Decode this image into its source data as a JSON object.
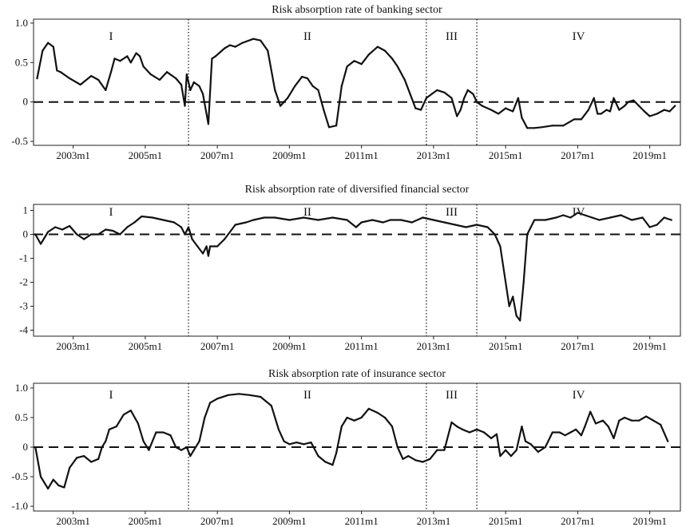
{
  "chart_data": [
    {
      "type": "line",
      "title": "Risk absorption rate of banking sector",
      "ylim": [
        -0.55,
        1.05
      ],
      "yticks": [
        1.0,
        0.5,
        0,
        -0.5
      ],
      "ytick_labels": [
        "1.0",
        "0.5",
        "0",
        "-0.5"
      ],
      "xlim": [
        2001.9,
        2019.85
      ],
      "xticks": [
        2003,
        2005,
        2007,
        2009,
        2011,
        2013,
        2015,
        2017,
        2019
      ],
      "xtick_labels": [
        "2003m1",
        "2005m1",
        "2007m1",
        "2009m1",
        "2011m1",
        "2013m1",
        "2015m1",
        "2017m1",
        "2019m1"
      ],
      "zero_line": 0,
      "period_boundaries": [
        2006.2,
        2012.8,
        2014.2
      ],
      "periods": [
        "I",
        "II",
        "III",
        "IV"
      ],
      "series": [
        {
          "x": [
            2002.0,
            2002.15,
            2002.3,
            2002.45,
            2002.55,
            2002.65,
            2002.9,
            2003.2,
            2003.5,
            2003.7,
            2003.9,
            2004.05,
            2004.15,
            2004.3,
            2004.5,
            2004.6,
            2004.75,
            2004.85,
            2004.95,
            2005.15,
            2005.4,
            2005.6,
            2005.85,
            2006.0,
            2006.1,
            2006.15,
            2006.25,
            2006.35,
            2006.5,
            2006.6,
            2006.75,
            2006.85,
            2006.95,
            2007.05,
            2007.2,
            2007.35,
            2007.5,
            2007.7,
            2008.0,
            2008.2,
            2008.4,
            2008.6,
            2008.75,
            2008.85,
            2008.95,
            2009.15,
            2009.35,
            2009.5,
            2009.65,
            2009.8,
            2009.95,
            2010.1,
            2010.3,
            2010.45,
            2010.6,
            2010.8,
            2011.0,
            2011.2,
            2011.45,
            2011.65,
            2011.85,
            2012.0,
            2012.2,
            2012.35,
            2012.5,
            2012.65,
            2012.8,
            2012.95,
            2013.1,
            2013.3,
            2013.5,
            2013.65,
            2013.75,
            2013.85,
            2013.95,
            2014.1,
            2014.2,
            2014.35,
            2014.6,
            2014.8,
            2015.0,
            2015.2,
            2015.35,
            2015.45,
            2015.6,
            2015.8,
            2016.0,
            2016.3,
            2016.6,
            2016.9,
            2017.1,
            2017.3,
            2017.45,
            2017.55,
            2017.65,
            2017.8,
            2017.9,
            2018.0,
            2018.15,
            2018.3,
            2018.4,
            2018.55,
            2018.7,
            2018.85,
            2019.0,
            2019.2,
            2019.4,
            2019.55,
            2019.7
          ],
          "y": [
            0.3,
            0.65,
            0.75,
            0.7,
            0.4,
            0.38,
            0.3,
            0.22,
            0.33,
            0.28,
            0.15,
            0.38,
            0.55,
            0.52,
            0.58,
            0.5,
            0.62,
            0.58,
            0.45,
            0.35,
            0.28,
            0.38,
            0.3,
            0.22,
            -0.05,
            0.35,
            0.15,
            0.25,
            0.2,
            0.1,
            -0.28,
            0.55,
            0.58,
            0.62,
            0.68,
            0.72,
            0.7,
            0.75,
            0.8,
            0.78,
            0.65,
            0.15,
            -0.05,
            0.0,
            0.05,
            0.2,
            0.32,
            0.3,
            0.2,
            0.15,
            -0.1,
            -0.32,
            -0.3,
            0.2,
            0.45,
            0.52,
            0.48,
            0.6,
            0.7,
            0.65,
            0.55,
            0.45,
            0.28,
            0.1,
            -0.08,
            -0.1,
            0.05,
            0.1,
            0.15,
            0.12,
            0.05,
            -0.18,
            -0.1,
            0.05,
            0.15,
            0.1,
            0.0,
            -0.05,
            -0.1,
            -0.15,
            -0.08,
            -0.12,
            0.05,
            -0.2,
            -0.33,
            -0.33,
            -0.32,
            -0.3,
            -0.3,
            -0.22,
            -0.22,
            -0.1,
            0.05,
            -0.15,
            -0.15,
            -0.1,
            -0.12,
            0.05,
            -0.1,
            -0.05,
            0.0,
            0.02,
            -0.05,
            -0.12,
            -0.18,
            -0.15,
            -0.1,
            -0.12,
            -0.05
          ]
        }
      ]
    },
    {
      "type": "line",
      "title": "Risk absorption rate of diversified financial sector",
      "ylim": [
        -4.25,
        1.25
      ],
      "yticks": [
        1,
        0,
        -1,
        -2,
        -3,
        -4
      ],
      "ytick_labels": [
        "1",
        "0",
        "-1",
        "-2",
        "-3",
        "-4"
      ],
      "xlim": [
        2001.9,
        2019.85
      ],
      "xticks": [
        2003,
        2005,
        2007,
        2009,
        2011,
        2013,
        2015,
        2017,
        2019
      ],
      "xtick_labels": [
        "2003m1",
        "2005m1",
        "2007m1",
        "2009m1",
        "2011m1",
        "2013m1",
        "2015m1",
        "2017m1",
        "2019m1"
      ],
      "zero_line": 0,
      "period_boundaries": [
        2006.2,
        2012.8,
        2014.2
      ],
      "periods": [
        "I",
        "II",
        "III",
        "IV"
      ],
      "series": [
        {
          "x": [
            2001.95,
            2002.1,
            2002.3,
            2002.5,
            2002.7,
            2002.9,
            2003.1,
            2003.3,
            2003.5,
            2003.7,
            2003.9,
            2004.1,
            2004.3,
            2004.5,
            2004.7,
            2004.9,
            2005.2,
            2005.5,
            2005.8,
            2006.0,
            2006.1,
            2006.2,
            2006.3,
            2006.45,
            2006.6,
            2006.7,
            2006.75,
            2006.8,
            2007.0,
            2007.2,
            2007.5,
            2007.8,
            2008.0,
            2008.3,
            2008.6,
            2009.0,
            2009.4,
            2009.8,
            2010.2,
            2010.6,
            2010.85,
            2011.0,
            2011.3,
            2011.6,
            2011.8,
            2012.1,
            2012.4,
            2012.7,
            2013.0,
            2013.3,
            2013.6,
            2013.9,
            2014.2,
            2014.5,
            2014.7,
            2014.85,
            2014.95,
            2015.1,
            2015.2,
            2015.3,
            2015.4,
            2015.5,
            2015.6,
            2015.8,
            2016.1,
            2016.4,
            2016.6,
            2016.8,
            2017.0,
            2017.2,
            2017.4,
            2017.6,
            2017.9,
            2018.2,
            2018.5,
            2018.8,
            2019.0,
            2019.2,
            2019.4,
            2019.6
          ],
          "y": [
            0.0,
            -0.4,
            0.1,
            0.3,
            0.2,
            0.35,
            0.0,
            -0.2,
            0.0,
            0.0,
            0.2,
            0.15,
            0.0,
            0.3,
            0.5,
            0.75,
            0.7,
            0.6,
            0.5,
            0.3,
            0.0,
            0.3,
            -0.2,
            -0.5,
            -0.8,
            -0.5,
            -0.9,
            -0.5,
            -0.5,
            -0.2,
            0.4,
            0.5,
            0.6,
            0.7,
            0.7,
            0.6,
            0.7,
            0.6,
            0.7,
            0.6,
            0.3,
            0.5,
            0.6,
            0.5,
            0.6,
            0.6,
            0.5,
            0.7,
            0.6,
            0.5,
            0.4,
            0.3,
            0.4,
            0.3,
            0.0,
            -0.5,
            -1.5,
            -3.0,
            -2.6,
            -3.4,
            -3.6,
            -2.0,
            0.0,
            0.6,
            0.6,
            0.7,
            0.8,
            0.7,
            0.9,
            0.8,
            0.7,
            0.6,
            0.7,
            0.8,
            0.6,
            0.7,
            0.3,
            0.4,
            0.7,
            0.6
          ]
        }
      ]
    },
    {
      "type": "line",
      "title": "Risk absorption rate of insurance sector",
      "ylim": [
        -1.08,
        1.08
      ],
      "yticks": [
        1.0,
        0.5,
        0,
        -0.5,
        -1.0
      ],
      "ytick_labels": [
        "1.0",
        "0.5",
        "0",
        "-0.5",
        "-1.0"
      ],
      "xlim": [
        2001.9,
        2019.85
      ],
      "xticks": [
        2003,
        2005,
        2007,
        2009,
        2011,
        2013,
        2015,
        2017,
        2019
      ],
      "xtick_labels": [
        "2003m1",
        "2005m1",
        "2007m1",
        "2009m1",
        "2011m1",
        "2013m1",
        "2015m1",
        "2017m1",
        "2019m1"
      ],
      "zero_line": 0,
      "period_boundaries": [
        2006.2,
        2012.8,
        2014.2
      ],
      "periods": [
        "I",
        "II",
        "III",
        "IV"
      ],
      "series": [
        {
          "x": [
            2001.95,
            2002.1,
            2002.3,
            2002.45,
            2002.6,
            2002.75,
            2002.9,
            2003.1,
            2003.3,
            2003.5,
            2003.7,
            2003.8,
            2003.9,
            2004.0,
            2004.2,
            2004.4,
            2004.6,
            2004.8,
            2004.95,
            2005.1,
            2005.3,
            2005.5,
            2005.7,
            2005.85,
            2006.0,
            2006.15,
            2006.25,
            2006.35,
            2006.5,
            2006.65,
            2006.8,
            2007.0,
            2007.3,
            2007.6,
            2007.9,
            2008.2,
            2008.5,
            2008.7,
            2008.85,
            2009.0,
            2009.2,
            2009.4,
            2009.6,
            2009.8,
            2010.0,
            2010.2,
            2010.3,
            2010.45,
            2010.6,
            2010.8,
            2011.0,
            2011.2,
            2011.45,
            2011.65,
            2011.85,
            2012.0,
            2012.15,
            2012.3,
            2012.5,
            2012.7,
            2012.9,
            2013.1,
            2013.3,
            2013.5,
            2013.65,
            2013.8,
            2014.0,
            2014.2,
            2014.4,
            2014.6,
            2014.75,
            2014.85,
            2015.0,
            2015.15,
            2015.3,
            2015.45,
            2015.55,
            2015.7,
            2015.9,
            2016.1,
            2016.3,
            2016.5,
            2016.65,
            2016.8,
            2016.95,
            2017.1,
            2017.2,
            2017.35,
            2017.5,
            2017.7,
            2017.85,
            2018.0,
            2018.15,
            2018.3,
            2018.5,
            2018.7,
            2018.9,
            2019.1,
            2019.3,
            2019.5
          ],
          "y": [
            0.0,
            -0.5,
            -0.7,
            -0.55,
            -0.65,
            -0.68,
            -0.35,
            -0.18,
            -0.15,
            -0.25,
            -0.2,
            0.0,
            0.1,
            0.3,
            0.35,
            0.55,
            0.62,
            0.4,
            0.1,
            -0.05,
            0.25,
            0.25,
            0.2,
            0.0,
            -0.05,
            0.0,
            -0.15,
            -0.05,
            0.1,
            0.5,
            0.75,
            0.82,
            0.88,
            0.9,
            0.88,
            0.85,
            0.7,
            0.3,
            0.1,
            0.05,
            0.08,
            0.05,
            0.08,
            -0.15,
            -0.25,
            -0.3,
            -0.1,
            0.35,
            0.5,
            0.45,
            0.5,
            0.65,
            0.58,
            0.5,
            0.35,
            0.0,
            -0.2,
            -0.15,
            -0.22,
            -0.25,
            -0.2,
            -0.05,
            -0.05,
            0.42,
            0.35,
            0.3,
            0.25,
            0.3,
            0.25,
            0.15,
            0.22,
            -0.15,
            -0.05,
            -0.15,
            -0.05,
            0.35,
            0.1,
            0.05,
            -0.08,
            0.0,
            0.25,
            0.25,
            0.2,
            0.25,
            0.3,
            0.2,
            0.35,
            0.6,
            0.4,
            0.45,
            0.35,
            0.15,
            0.45,
            0.5,
            0.45,
            0.45,
            0.52,
            0.45,
            0.38,
            0.1
          ]
        }
      ]
    }
  ]
}
